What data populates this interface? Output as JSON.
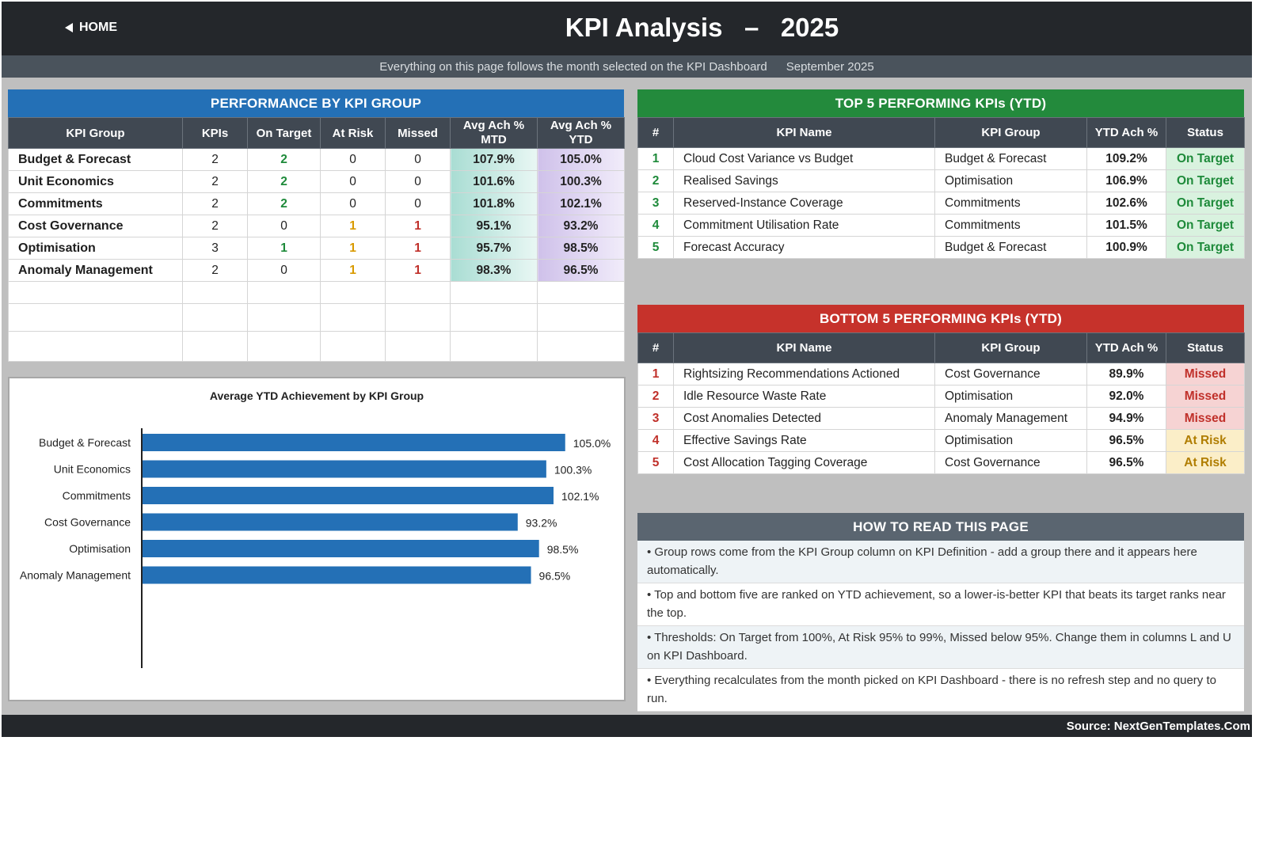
{
  "header": {
    "home_label": "HOME",
    "title": "KPI Analysis   –   2025"
  },
  "subheader": {
    "note": "Everything on this page follows the month selected on the KPI Dashboard",
    "month": "September 2025"
  },
  "group_table": {
    "title": "PERFORMANCE BY KPI GROUP",
    "columns": [
      "KPI Group",
      "KPIs",
      "On Target",
      "At Risk",
      "Missed",
      "Avg Ach % MTD",
      "Avg Ach % YTD"
    ],
    "rows": [
      {
        "group": "Budget & Forecast",
        "kpis": "2",
        "on_target": "2",
        "at_risk": "0",
        "missed": "0",
        "mtd": "107.9%",
        "ytd": "105.0%"
      },
      {
        "group": "Unit Economics",
        "kpis": "2",
        "on_target": "2",
        "at_risk": "0",
        "missed": "0",
        "mtd": "101.6%",
        "ytd": "100.3%"
      },
      {
        "group": "Commitments",
        "kpis": "2",
        "on_target": "2",
        "at_risk": "0",
        "missed": "0",
        "mtd": "101.8%",
        "ytd": "102.1%"
      },
      {
        "group": "Cost Governance",
        "kpis": "2",
        "on_target": "0",
        "at_risk": "1",
        "missed": "1",
        "mtd": "95.1%",
        "ytd": "93.2%"
      },
      {
        "group": "Optimisation",
        "kpis": "3",
        "on_target": "1",
        "at_risk": "1",
        "missed": "1",
        "mtd": "95.7%",
        "ytd": "98.5%"
      },
      {
        "group": "Anomaly Management",
        "kpis": "2",
        "on_target": "0",
        "at_risk": "1",
        "missed": "1",
        "mtd": "98.3%",
        "ytd": "96.5%"
      }
    ]
  },
  "top5": {
    "title": "TOP 5 PERFORMING KPIs  (YTD)",
    "columns": [
      "#",
      "KPI Name",
      "KPI Group",
      "YTD Ach %",
      "Status"
    ],
    "rows": [
      {
        "rank": "1",
        "name": "Cloud Cost Variance vs Budget",
        "group": "Budget & Forecast",
        "ytd": "109.2%",
        "status": "On Target"
      },
      {
        "rank": "2",
        "name": "Realised Savings",
        "group": "Optimisation",
        "ytd": "106.9%",
        "status": "On Target"
      },
      {
        "rank": "3",
        "name": "Reserved-Instance Coverage",
        "group": "Commitments",
        "ytd": "102.6%",
        "status": "On Target"
      },
      {
        "rank": "4",
        "name": "Commitment Utilisation Rate",
        "group": "Commitments",
        "ytd": "101.5%",
        "status": "On Target"
      },
      {
        "rank": "5",
        "name": "Forecast Accuracy",
        "group": "Budget & Forecast",
        "ytd": "100.9%",
        "status": "On Target"
      }
    ]
  },
  "bottom5": {
    "title": "BOTTOM 5 PERFORMING KPIs  (YTD)",
    "columns": [
      "#",
      "KPI Name",
      "KPI Group",
      "YTD Ach %",
      "Status"
    ],
    "rows": [
      {
        "rank": "1",
        "name": "Rightsizing Recommendations Actioned",
        "group": "Cost Governance",
        "ytd": "89.9%",
        "status": "Missed"
      },
      {
        "rank": "2",
        "name": "Idle Resource Waste Rate",
        "group": "Optimisation",
        "ytd": "92.0%",
        "status": "Missed"
      },
      {
        "rank": "3",
        "name": "Cost Anomalies Detected",
        "group": "Anomaly Management",
        "ytd": "94.9%",
        "status": "Missed"
      },
      {
        "rank": "4",
        "name": "Effective Savings Rate",
        "group": "Optimisation",
        "ytd": "96.5%",
        "status": "At Risk"
      },
      {
        "rank": "5",
        "name": "Cost Allocation Tagging Coverage",
        "group": "Cost Governance",
        "ytd": "96.5%",
        "status": "At Risk"
      }
    ]
  },
  "howto": {
    "title": "HOW TO READ THIS PAGE",
    "items": [
      "•  Group rows come from the KPI Group column on KPI Definition - add a group there and it appears here automatically.",
      "•  Top and bottom five are ranked on YTD achievement, so a lower-is-better KPI that beats its target ranks near the top.",
      "•  Thresholds: On Target from 100%, At Risk 95% to 99%, Missed below 95%. Change them in columns L and U on KPI Dashboard.",
      "•  Everything recalculates from the month picked on KPI Dashboard - there is no refresh step and no query to run."
    ]
  },
  "footer": {
    "source": "Source: NextGenTemplates.Com"
  },
  "colors": {
    "header_bg": "#24272b",
    "group_title": "#2470b6",
    "top_title": "#238a3c",
    "bottom_title": "#c6322b",
    "bar": "#2470b6"
  },
  "chart_data": {
    "type": "bar",
    "orientation": "horizontal",
    "title": "Average YTD Achievement by KPI Group",
    "categories": [
      "Budget & Forecast",
      "Unit Economics",
      "Commitments",
      "Cost Governance",
      "Optimisation",
      "Anomaly Management"
    ],
    "values": [
      105.0,
      100.3,
      102.1,
      93.2,
      98.5,
      96.5
    ],
    "value_labels": [
      "105.0%",
      "100.3%",
      "102.1%",
      "93.2%",
      "98.5%",
      "96.5%"
    ],
    "xlim": [
      0,
      120
    ],
    "grid": false,
    "legend": "none"
  }
}
